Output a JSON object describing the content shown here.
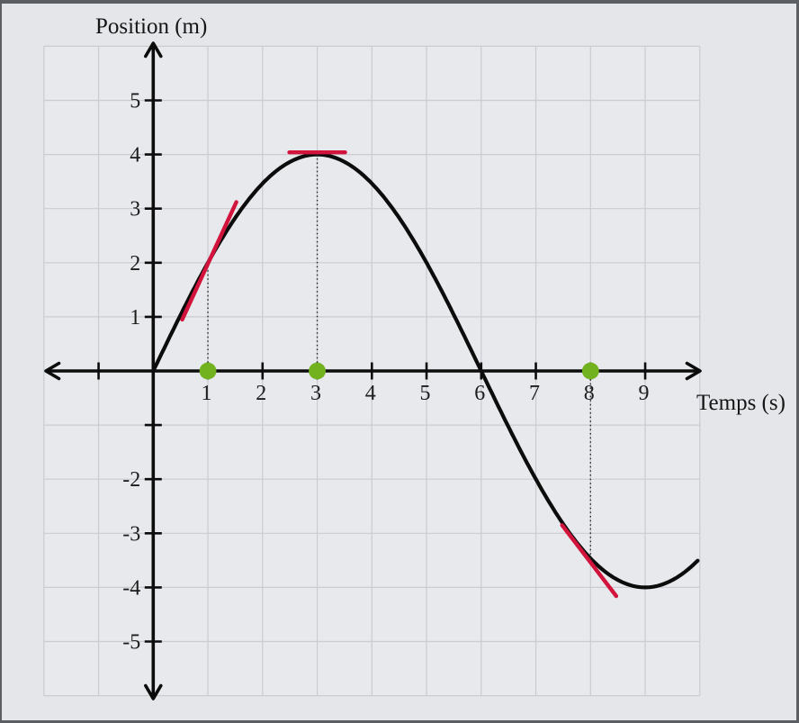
{
  "frame": {
    "background": "#e4e6e9",
    "border_color": "#5b5e63"
  },
  "chart_data": {
    "type": "line",
    "title": "",
    "xlabel": "Temps (s)",
    "ylabel": "Position (m)",
    "xlim": [
      -2,
      10
    ],
    "ylim": [
      -6,
      6
    ],
    "grid": true,
    "x_ticks_labeled": [
      1,
      2,
      3,
      4,
      5,
      6,
      7,
      8,
      9
    ],
    "x_ticks_unlabeled": [
      -1
    ],
    "y_ticks_labeled": [
      5,
      4,
      3,
      2,
      1,
      -2,
      -3,
      -4,
      -5
    ],
    "y_ticks_unlabeled": [
      -1
    ],
    "curve": {
      "description": "x(t) = 4·sin(π·t/6)",
      "amplitude": 4,
      "period": 12,
      "t_start": 0,
      "t_end": 9.97,
      "points_sample": [
        [
          0,
          0
        ],
        [
          1,
          2
        ],
        [
          2,
          3.46
        ],
        [
          3,
          4
        ],
        [
          4,
          3.46
        ],
        [
          5,
          2
        ],
        [
          6,
          0
        ],
        [
          7,
          -2
        ],
        [
          8,
          -3.46
        ],
        [
          9,
          -4
        ],
        [
          9.97,
          -3.49
        ]
      ]
    },
    "marked_points": [
      {
        "t": 1,
        "position": 2
      },
      {
        "t": 3,
        "position": 4
      },
      {
        "t": 8,
        "position": -3.46
      }
    ],
    "tangent_segments": [
      {
        "at_t": 1,
        "from": [
          0.53,
          0.95
        ],
        "to": [
          1.52,
          3.12
        ]
      },
      {
        "at_t": 3,
        "from": [
          2.49,
          4.04
        ],
        "to": [
          3.51,
          4.04
        ]
      },
      {
        "at_t": 8,
        "from": [
          7.48,
          -2.85
        ],
        "to": [
          8.47,
          -4.16
        ]
      }
    ],
    "colors": {
      "curve": "#0c0c0c",
      "axis": "#0c0c0c",
      "grid": "#c9ccd0",
      "plot_bg": "#e7e9ec",
      "tangent": "#d2143c",
      "point": "#72b21e",
      "guide": "#222222",
      "tick_label": "#1c1c1c"
    }
  }
}
